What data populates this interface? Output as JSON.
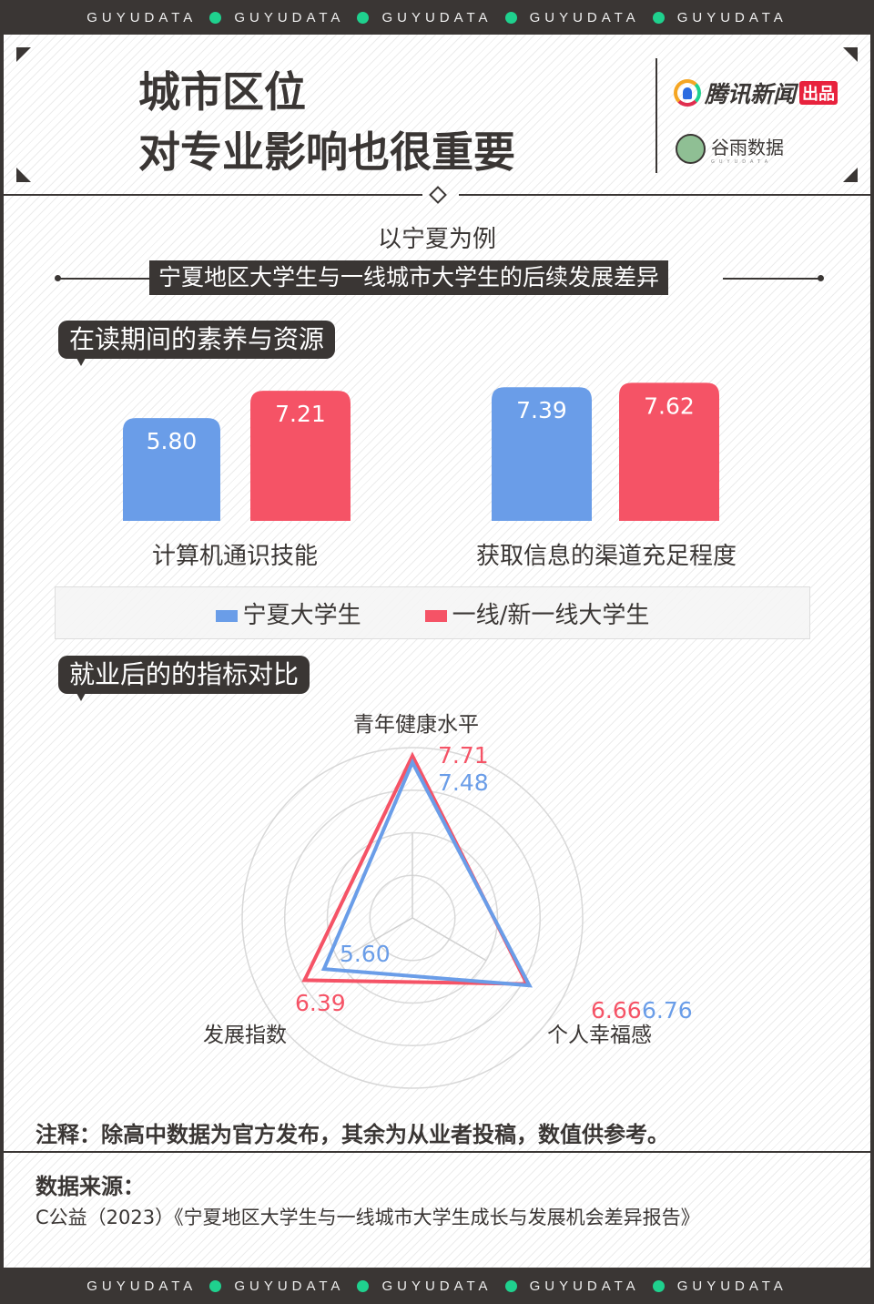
{
  "band_text": "GUYUDATA",
  "header": {
    "title_line1": "城市区位",
    "title_line2": "对专业影响也很重要",
    "logo1_text": "腾讯新闻",
    "logo1_badge": "出品",
    "logo2_text": "谷雨数据",
    "logo2_sub": "GUYUDATA"
  },
  "subtitle": "以宁夏为例",
  "banner": "宁夏地区大学生与一线城市大学生的后续发展差异",
  "section1": "在读期间的素养与资源",
  "section2": "就业后的的指标对比",
  "colors": {
    "dark": "#3a3634",
    "accent": "#1fd18e",
    "ningxia": "#6a9de8",
    "tier1": "#f55366"
  },
  "legend": [
    {
      "label": "宁夏大学生",
      "color": "#6a9de8"
    },
    {
      "label": "一线/新一线大学生",
      "color": "#f55366"
    }
  ],
  "chart_data": [
    {
      "type": "bar",
      "categories": [
        "计算机通识技能",
        "获取信息的渠道充足程度"
      ],
      "series": [
        {
          "name": "宁夏大学生",
          "values": [
            5.8,
            7.39
          ]
        },
        {
          "name": "一线/新一线大学生",
          "values": [
            7.21,
            7.62
          ]
        }
      ],
      "value_labels": [
        [
          "5.80",
          "7.39"
        ],
        [
          "7.21",
          "7.62"
        ]
      ],
      "grid": false
    },
    {
      "type": "radar",
      "axes": [
        "青年健康水平",
        "个人幸福感",
        "发展指数"
      ],
      "series": [
        {
          "name": "宁夏大学生",
          "values": [
            7.48,
            6.76,
            5.6
          ]
        },
        {
          "name": "一线/新一线大学生",
          "values": [
            7.71,
            6.66,
            6.39
          ]
        }
      ],
      "value_labels": [
        [
          "7.48",
          "6.76",
          "5.60"
        ],
        [
          "7.71",
          "6.66",
          "6.39"
        ]
      ],
      "rings": 4
    }
  ],
  "note": "注释：除高中数据为官方发布，其余为从业者投稿，数值供参考。",
  "source_title": "数据来源：",
  "source": "C公益（2023）《宁夏地区大学生与一线城市大学生成长与发展机会差异报告》"
}
